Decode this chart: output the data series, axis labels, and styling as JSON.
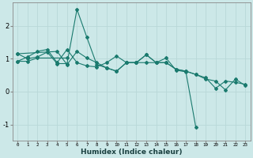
{
  "xlabel": "Humidex (Indice chaleur)",
  "ylabel": "",
  "background_color": "#cce8e8",
  "line_color": "#1a7a6e",
  "xlim": [
    -0.5,
    23.5
  ],
  "ylim": [
    -1.5,
    2.7
  ],
  "yticks": [
    -1,
    0,
    1,
    2
  ],
  "xticks": [
    0,
    1,
    2,
    3,
    4,
    5,
    6,
    7,
    8,
    9,
    10,
    11,
    12,
    13,
    14,
    15,
    16,
    17,
    18,
    19,
    20,
    21,
    22,
    23
  ],
  "series": [
    [
      [
        0,
        1.15
      ],
      [
        1,
        1.0
      ],
      [
        2,
        1.05
      ],
      [
        3,
        1.2
      ],
      [
        4,
        0.85
      ],
      [
        5,
        0.85
      ],
      [
        6,
        2.5
      ],
      [
        7,
        1.65
      ],
      [
        8,
        0.82
      ],
      [
        9,
        0.72
      ],
      [
        10,
        0.62
      ],
      [
        11,
        0.88
      ],
      [
        12,
        0.88
      ],
      [
        13,
        1.12
      ],
      [
        14,
        0.88
      ],
      [
        15,
        0.88
      ],
      [
        16,
        0.68
      ],
      [
        17,
        0.62
      ],
      [
        18,
        0.52
      ],
      [
        19,
        0.42
      ],
      [
        20,
        0.1
      ],
      [
        21,
        0.32
      ],
      [
        22,
        0.28
      ],
      [
        23,
        0.22
      ]
    ],
    [
      [
        0,
        0.92
      ],
      [
        1,
        1.05
      ],
      [
        2,
        1.22
      ],
      [
        3,
        1.28
      ],
      [
        4,
        0.88
      ],
      [
        5,
        1.28
      ],
      [
        6,
        0.88
      ],
      [
        7,
        0.78
      ],
      [
        8,
        0.75
      ],
      [
        9,
        0.88
      ],
      [
        10,
        1.08
      ],
      [
        11,
        0.88
      ],
      [
        12,
        0.88
      ],
      [
        13,
        1.12
      ],
      [
        14,
        0.88
      ],
      [
        15,
        1.02
      ],
      [
        16,
        0.65
      ],
      [
        17,
        0.6
      ],
      [
        18,
        -1.08
      ]
    ],
    [
      [
        0,
        1.15
      ],
      [
        4,
        1.22
      ],
      [
        5,
        0.82
      ],
      [
        6,
        1.22
      ],
      [
        7,
        1.02
      ],
      [
        8,
        0.88
      ],
      [
        9,
        0.72
      ],
      [
        10,
        0.62
      ],
      [
        11,
        0.88
      ],
      [
        12,
        0.88
      ],
      [
        13,
        0.88
      ],
      [
        14,
        0.88
      ],
      [
        15,
        0.88
      ],
      [
        16,
        0.68
      ],
      [
        17,
        0.62
      ],
      [
        18,
        0.52
      ],
      [
        19,
        0.38
      ],
      [
        20,
        0.32
      ],
      [
        21,
        0.05
      ],
      [
        22,
        0.38
      ],
      [
        23,
        0.18
      ]
    ],
    [
      [
        0,
        0.92
      ],
      [
        1,
        0.92
      ],
      [
        2,
        1.02
      ],
      [
        5,
        1.02
      ]
    ]
  ]
}
